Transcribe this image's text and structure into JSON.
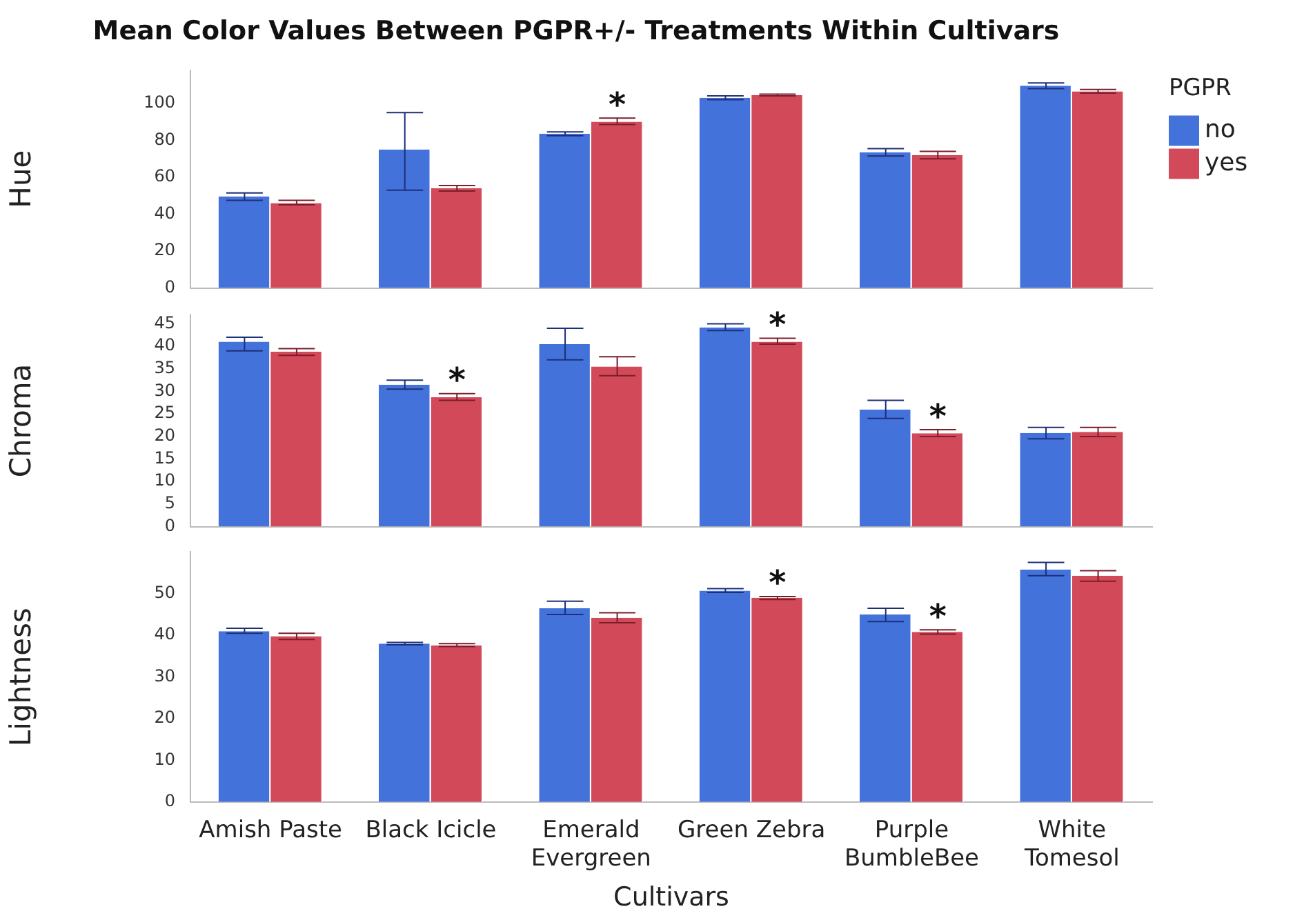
{
  "chart_data": [
    {
      "type": "bar",
      "title": "Mean Color Values Between PGPR+/- Treatments Within Cultivars",
      "ylabel": "Hue",
      "legend_title": "PGPR",
      "legend": "right",
      "tick_labels": "y",
      "categories": [
        "Amish Paste",
        "Black Icicle",
        "Emerald Evergreen",
        "Green Zebra",
        "Purple BumbleBee",
        "White Tomesol"
      ],
      "ylim": [
        0,
        118
      ],
      "yticks": [
        0,
        20,
        40,
        60,
        80,
        100
      ],
      "series": [
        {
          "name": "no",
          "color": "#4472db",
          "values": [
            49.5,
            75,
            83.5,
            103,
            73.5,
            109.5
          ],
          "errors": [
            [
              47.5,
              51.5
            ],
            [
              53,
              95
            ],
            [
              82.5,
              84.5
            ],
            [
              102,
              104
            ],
            [
              71.5,
              75.5
            ],
            [
              108,
              111
            ]
          ]
        },
        {
          "name": "yes",
          "color": "#d24a5a",
          "values": [
            46,
            54,
            90,
            104.5,
            72,
            106.5
          ],
          "errors": [
            [
              45,
              47.5
            ],
            [
              52.5,
              55.5
            ],
            [
              88.5,
              92
            ],
            [
              104,
              105
            ],
            [
              70,
              74
            ],
            [
              105.5,
              107.5
            ]
          ]
        }
      ],
      "annotations": [
        {
          "text": "*",
          "x": "Emerald Evergreen",
          "y": 90
        }
      ]
    },
    {
      "type": "bar",
      "ylabel": "Chroma",
      "tick_labels": "y",
      "categories": [
        "Amish Paste",
        "Black Icicle",
        "Emerald Evergreen",
        "Green Zebra",
        "Purple BumbleBee",
        "White Tomesol"
      ],
      "ylim": [
        0,
        47
      ],
      "yticks": [
        0,
        5,
        10,
        15,
        20,
        25,
        30,
        35,
        40,
        45
      ],
      "series": [
        {
          "color": "#4472db",
          "values": [
            41,
            31.5,
            40.5,
            44.2,
            26,
            20.8
          ],
          "errors": [
            [
              39,
              42
            ],
            [
              30.5,
              32.5
            ],
            [
              37,
              44
            ],
            [
              43.5,
              45
            ],
            [
              24,
              28
            ],
            [
              19.5,
              22
            ]
          ]
        },
        {
          "color": "#d24a5a",
          "values": [
            38.8,
            28.7,
            35.5,
            41,
            20.7,
            21
          ],
          "errors": [
            [
              38,
              39.5
            ],
            [
              28,
              29.5
            ],
            [
              33.5,
              37.7
            ],
            [
              40.5,
              41.8
            ],
            [
              20,
              21.5
            ],
            [
              20,
              22
            ]
          ]
        }
      ],
      "annotations": [
        {
          "text": "*",
          "x": "Black Icicle",
          "y": 28.7
        },
        {
          "text": "*",
          "x": "Green Zebra",
          "y": 41
        },
        {
          "text": "*",
          "x": "Purple BumbleBee",
          "y": 20.7
        }
      ]
    },
    {
      "type": "bar",
      "ylabel": "Lightness",
      "xlabel": "Cultivars",
      "categories": [
        "Amish Paste",
        "Black Icicle",
        "Emerald Evergreen",
        "Green Zebra",
        "Purple BumbleBee",
        "White Tomesol"
      ],
      "ylim": [
        0,
        60
      ],
      "yticks": [
        0,
        10,
        20,
        30,
        40,
        50
      ],
      "series": [
        {
          "color": "#4472db",
          "values": [
            41,
            38,
            46.5,
            50.7,
            45,
            55.8
          ],
          "errors": [
            [
              40.5,
              41.7
            ],
            [
              37.7,
              38.3
            ],
            [
              45,
              48.2
            ],
            [
              50.3,
              51.2
            ],
            [
              43.3,
              46.5
            ],
            [
              54.3,
              57.5
            ]
          ]
        },
        {
          "color": "#d24a5a",
          "values": [
            39.8,
            37.6,
            44.2,
            49,
            40.8,
            54.3
          ],
          "errors": [
            [
              39,
              40.5
            ],
            [
              37.3,
              38
            ],
            [
              43,
              45.4
            ],
            [
              48.6,
              49.3
            ],
            [
              40.3,
              41.3
            ],
            [
              53,
              55.5
            ]
          ]
        }
      ],
      "annotations": [
        {
          "text": "*",
          "x": "Green Zebra",
          "y": 49
        },
        {
          "text": "*",
          "x": "Purple BumbleBee",
          "y": 40.8
        }
      ]
    }
  ]
}
